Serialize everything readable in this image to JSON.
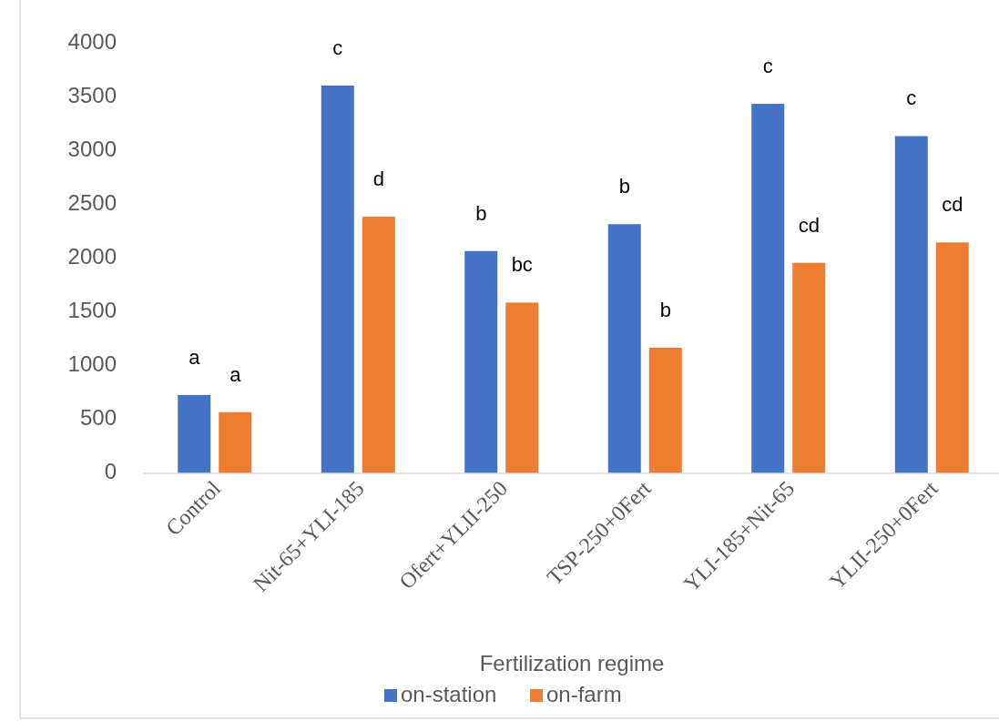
{
  "chart_data": {
    "type": "bar",
    "xlabel": "Fertilization regime",
    "categories": [
      "Control",
      "Nit-65+YLI-185",
      "Ofert+YLII-250",
      "TSP-250+0Fert",
      "YLI-185+Nit-65",
      "YLII-250+0Fert"
    ],
    "series": [
      {
        "name": "on-station",
        "color": "#4472c4",
        "values": [
          730,
          3610,
          2070,
          2320,
          3440,
          3140
        ]
      },
      {
        "name": "on-farm",
        "color": "#ed7d31",
        "values": [
          570,
          2390,
          1590,
          1170,
          1960,
          2150
        ]
      }
    ],
    "ylim": [
      0,
      4000
    ],
    "yticks": [
      0,
      500,
      1000,
      1500,
      2000,
      2500,
      3000,
      3500,
      4000
    ],
    "grid": false,
    "legend": "bottom",
    "annotations": [
      "a",
      "a",
      "c",
      "d",
      "b",
      "bc",
      "b",
      "b",
      "c",
      "cd",
      "c",
      "cd"
    ]
  }
}
